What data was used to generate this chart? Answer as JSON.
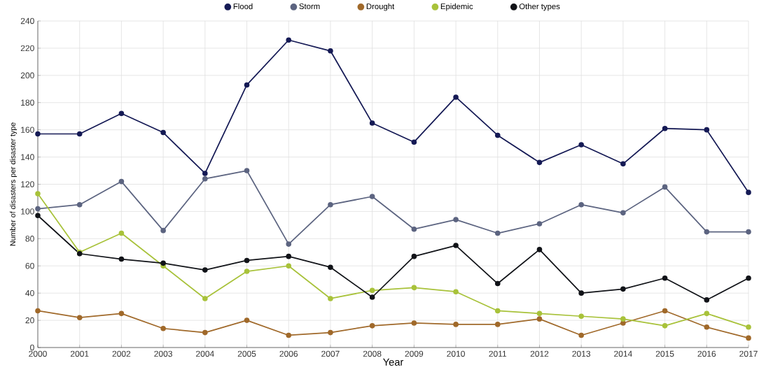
{
  "chart_data": {
    "type": "line",
    "xlabel": "Year",
    "ylabel": "Number of disasters per  disaster type",
    "x": [
      2000,
      2001,
      2002,
      2003,
      2004,
      2005,
      2006,
      2007,
      2008,
      2009,
      2010,
      2011,
      2012,
      2013,
      2014,
      2015,
      2016,
      2017
    ],
    "series": [
      {
        "name": "Flood",
        "color": "#151a55",
        "values": [
          157,
          157,
          172,
          158,
          128,
          193,
          226,
          218,
          165,
          151,
          184,
          156,
          136,
          149,
          135,
          161,
          160,
          114
        ]
      },
      {
        "name": "Storm",
        "color": "#5c6480",
        "values": [
          102,
          105,
          122,
          86,
          124,
          130,
          76,
          105,
          111,
          87,
          94,
          84,
          91,
          105,
          99,
          118,
          85,
          85
        ]
      },
      {
        "name": "Drought",
        "color": "#a0692a",
        "values": [
          27,
          22,
          25,
          14,
          11,
          20,
          9,
          11,
          16,
          18,
          17,
          17,
          21,
          9,
          18,
          27,
          15,
          7
        ]
      },
      {
        "name": "Epidemic",
        "color": "#a8c23a",
        "values": [
          113,
          70,
          84,
          60,
          36,
          56,
          60,
          36,
          42,
          44,
          41,
          27,
          25,
          23,
          21,
          16,
          25,
          15
        ]
      },
      {
        "name": "Other types",
        "color": "#111318",
        "values": [
          97,
          69,
          65,
          62,
          57,
          64,
          67,
          59,
          37,
          67,
          75,
          47,
          72,
          40,
          43,
          51,
          35,
          51
        ]
      }
    ],
    "xlim": [
      2000,
      2017
    ],
    "xticks": [
      2000,
      2001,
      2002,
      2003,
      2004,
      2005,
      2006,
      2007,
      2008,
      2009,
      2010,
      2011,
      2012,
      2013,
      2014,
      2015,
      2016,
      2017
    ],
    "ylim": [
      0,
      240
    ],
    "yticks": [
      0,
      20,
      40,
      60,
      80,
      100,
      120,
      140,
      160,
      180,
      200,
      220,
      240
    ],
    "grid": true,
    "legend": "top",
    "marker": "circle",
    "line_style": "solid"
  }
}
